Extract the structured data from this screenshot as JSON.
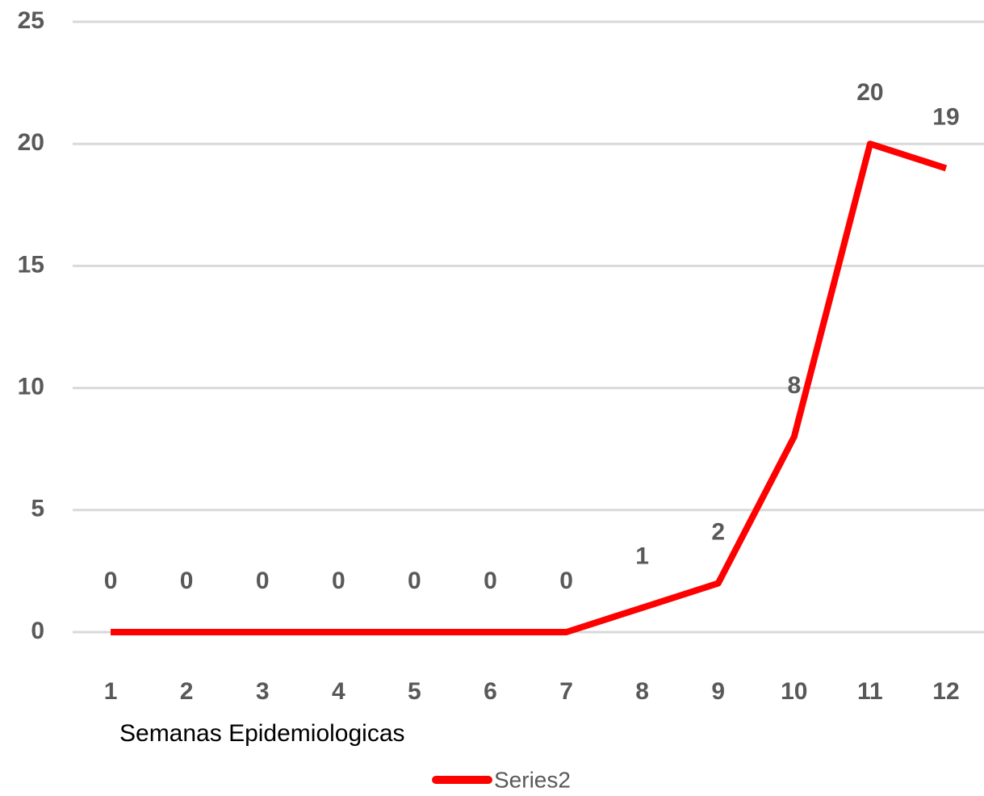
{
  "chart_data": {
    "type": "line",
    "x_label": "Semanas Epidemiologicas",
    "categories": [
      "1",
      "2",
      "3",
      "4",
      "5",
      "6",
      "7",
      "8",
      "9",
      "10",
      "11",
      "12"
    ],
    "series": [
      {
        "name": "Series2",
        "color": "#ff0000",
        "values": [
          0,
          0,
          0,
          0,
          0,
          0,
          0,
          1,
          2,
          8,
          20,
          19
        ]
      }
    ],
    "ylim": [
      0,
      25
    ],
    "yticks": [
      0,
      5,
      10,
      15,
      20,
      25
    ],
    "grid": true,
    "legend": "bottom",
    "data_labels": true
  }
}
